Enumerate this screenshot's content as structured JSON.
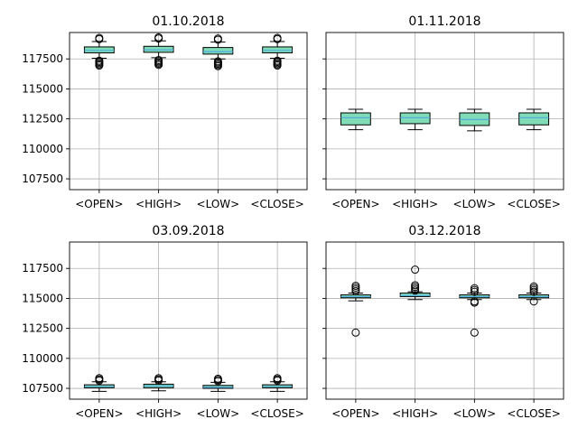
{
  "chart_data": [
    {
      "type": "box",
      "title": "01.10.2018",
      "categories": [
        "<OPEN>",
        "<HIGH>",
        "<LOW>",
        "<CLOSE>"
      ],
      "ylim": [
        106600,
        119700
      ],
      "yticks": [
        107500,
        110000,
        112500,
        115000,
        117500
      ],
      "show_ytick_labels": true,
      "grid": true,
      "boxes": [
        {
          "whislo": 117550,
          "q1": 118000,
          "med": 118200,
          "q3": 118500,
          "whishi": 118950,
          "fliers": [
            116950,
            117050,
            117150,
            117250,
            117350,
            119150,
            119250
          ]
        },
        {
          "whislo": 117600,
          "q1": 118050,
          "med": 118250,
          "q3": 118550,
          "whishi": 119000,
          "fliers": [
            117000,
            117100,
            117200,
            117300,
            117400,
            119200,
            119300
          ]
        },
        {
          "whislo": 117500,
          "q1": 117900,
          "med": 118100,
          "q3": 118450,
          "whishi": 118900,
          "fliers": [
            116900,
            117000,
            117100,
            117200,
            117300,
            119100,
            119200
          ]
        },
        {
          "whislo": 117550,
          "q1": 118000,
          "med": 118200,
          "q3": 118500,
          "whishi": 118950,
          "fliers": [
            116950,
            117050,
            117150,
            117250,
            117350,
            119150,
            119250
          ]
        }
      ]
    },
    {
      "type": "box",
      "title": "01.11.2018",
      "categories": [
        "<OPEN>",
        "<HIGH>",
        "<LOW>",
        "<CLOSE>"
      ],
      "ylim": [
        106600,
        119700
      ],
      "yticks": [
        107500,
        110000,
        112500,
        115000,
        117500
      ],
      "show_ytick_labels": false,
      "grid": true,
      "boxes": [
        {
          "whislo": 111600,
          "q1": 112000,
          "med": 112600,
          "q3": 113000,
          "whishi": 113300,
          "fliers": []
        },
        {
          "whislo": 111600,
          "q1": 112100,
          "med": 112600,
          "q3": 113000,
          "whishi": 113300,
          "fliers": []
        },
        {
          "whislo": 111500,
          "q1": 111950,
          "med": 112450,
          "q3": 113000,
          "whishi": 113300,
          "fliers": []
        },
        {
          "whislo": 111600,
          "q1": 112000,
          "med": 112600,
          "q3": 113000,
          "whishi": 113300,
          "fliers": []
        }
      ]
    },
    {
      "type": "box",
      "title": "03.09.2018",
      "categories": [
        "<OPEN>",
        "<HIGH>",
        "<LOW>",
        "<CLOSE>"
      ],
      "ylim": [
        106600,
        119700
      ],
      "yticks": [
        107500,
        110000,
        112500,
        115000,
        117500
      ],
      "show_ytick_labels": true,
      "grid": true,
      "boxes": [
        {
          "whislo": 107250,
          "q1": 107550,
          "med": 107650,
          "q3": 107800,
          "whishi": 108050,
          "fliers": [
            108150,
            108250,
            108350
          ]
        },
        {
          "whislo": 107300,
          "q1": 107550,
          "med": 107700,
          "q3": 107850,
          "whishi": 108050,
          "fliers": [
            108150,
            108250,
            108350
          ]
        },
        {
          "whislo": 107250,
          "q1": 107500,
          "med": 107600,
          "q3": 107750,
          "whishi": 108000,
          "fliers": [
            108100,
            108200,
            108300
          ]
        },
        {
          "whislo": 107250,
          "q1": 107550,
          "med": 107650,
          "q3": 107800,
          "whishi": 108050,
          "fliers": [
            108150,
            108250,
            108350
          ]
        }
      ]
    },
    {
      "type": "box",
      "title": "03.12.2018",
      "categories": [
        "<OPEN>",
        "<HIGH>",
        "<LOW>",
        "<CLOSE>"
      ],
      "ylim": [
        106600,
        119700
      ],
      "yticks": [
        107500,
        110000,
        112500,
        115000,
        117500
      ],
      "show_ytick_labels": false,
      "grid": true,
      "boxes": [
        {
          "whislo": 114800,
          "q1": 115050,
          "med": 115150,
          "q3": 115300,
          "whishi": 115450,
          "fliers": [
            112150,
            115600,
            115750,
            115900,
            116050
          ]
        },
        {
          "whislo": 114900,
          "q1": 115150,
          "med": 115250,
          "q3": 115450,
          "whishi": 115550,
          "fliers": [
            115650,
            115800,
            115950,
            116100,
            117400
          ]
        },
        {
          "whislo": 114900,
          "q1": 115050,
          "med": 115150,
          "q3": 115300,
          "whishi": 115450,
          "fliers": [
            112150,
            114650,
            114750,
            115550,
            115700,
            115850
          ]
        },
        {
          "whislo": 114900,
          "q1": 115050,
          "med": 115150,
          "q3": 115300,
          "whishi": 115450,
          "fliers": [
            114750,
            115550,
            115700,
            115850,
            116000
          ]
        }
      ]
    }
  ]
}
